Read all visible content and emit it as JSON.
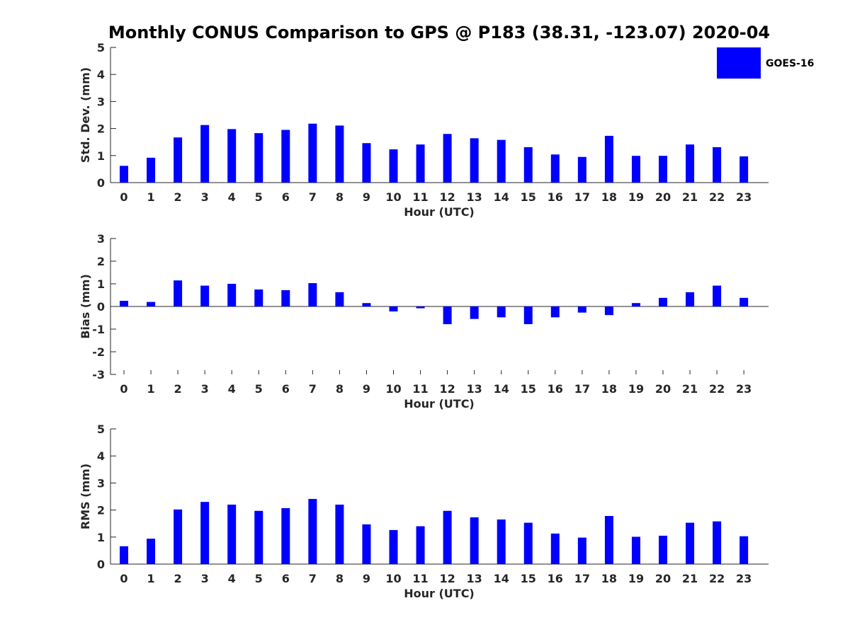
{
  "title": "Monthly CONUS Comparison to GPS @ P183 (38.31, -123.07) 2020-04",
  "legend": {
    "label": "GOES-16",
    "color": "#0000ff",
    "position": "top-right"
  },
  "chart_data": [
    {
      "type": "bar",
      "ylabel": "Std. Dev. (mm)",
      "xlabel": "Hour (UTC)",
      "ylim": [
        0,
        5
      ],
      "yticks": [
        0,
        1,
        2,
        3,
        4,
        5
      ],
      "categories": [
        "0",
        "1",
        "2",
        "3",
        "4",
        "5",
        "6",
        "7",
        "8",
        "9",
        "10",
        "11",
        "12",
        "13",
        "14",
        "15",
        "16",
        "17",
        "18",
        "19",
        "20",
        "21",
        "22",
        "23"
      ],
      "series": [
        {
          "name": "GOES-16",
          "color": "#0000ff",
          "values": [
            0.62,
            0.92,
            1.67,
            2.13,
            1.98,
            1.83,
            1.95,
            2.18,
            2.11,
            1.46,
            1.23,
            1.41,
            1.8,
            1.64,
            1.58,
            1.31,
            1.04,
            0.95,
            1.73,
            0.99,
            0.99,
            1.41,
            1.31,
            0.97
          ]
        }
      ]
    },
    {
      "type": "bar",
      "ylabel": "Bias (mm)",
      "xlabel": "Hour (UTC)",
      "ylim": [
        -3,
        3
      ],
      "yticks": [
        -3,
        -2,
        -1,
        0,
        1,
        2,
        3
      ],
      "categories": [
        "0",
        "1",
        "2",
        "3",
        "4",
        "5",
        "6",
        "7",
        "8",
        "9",
        "10",
        "11",
        "12",
        "13",
        "14",
        "15",
        "16",
        "17",
        "18",
        "19",
        "20",
        "21",
        "22",
        "23"
      ],
      "series": [
        {
          "name": "GOES-16",
          "color": "#0000ff",
          "values": [
            0.25,
            0.2,
            1.15,
            0.92,
            1.0,
            0.75,
            0.72,
            1.03,
            0.63,
            0.15,
            -0.22,
            -0.08,
            -0.78,
            -0.55,
            -0.48,
            -0.78,
            -0.48,
            -0.27,
            -0.38,
            0.15,
            0.38,
            0.63,
            0.92,
            0.38
          ]
        }
      ]
    },
    {
      "type": "bar",
      "ylabel": "RMS (mm)",
      "xlabel": "Hour (UTC)",
      "ylim": [
        0,
        5
      ],
      "yticks": [
        0,
        1,
        2,
        3,
        4,
        5
      ],
      "categories": [
        "0",
        "1",
        "2",
        "3",
        "4",
        "5",
        "6",
        "7",
        "8",
        "9",
        "10",
        "11",
        "12",
        "13",
        "14",
        "15",
        "16",
        "17",
        "18",
        "19",
        "20",
        "21",
        "22",
        "23"
      ],
      "series": [
        {
          "name": "GOES-16",
          "color": "#0000ff",
          "values": [
            0.66,
            0.94,
            2.02,
            2.3,
            2.2,
            1.97,
            2.07,
            2.41,
            2.2,
            1.47,
            1.26,
            1.4,
            1.97,
            1.73,
            1.65,
            1.53,
            1.13,
            0.98,
            1.78,
            1.01,
            1.05,
            1.53,
            1.58,
            1.03
          ]
        }
      ]
    }
  ]
}
